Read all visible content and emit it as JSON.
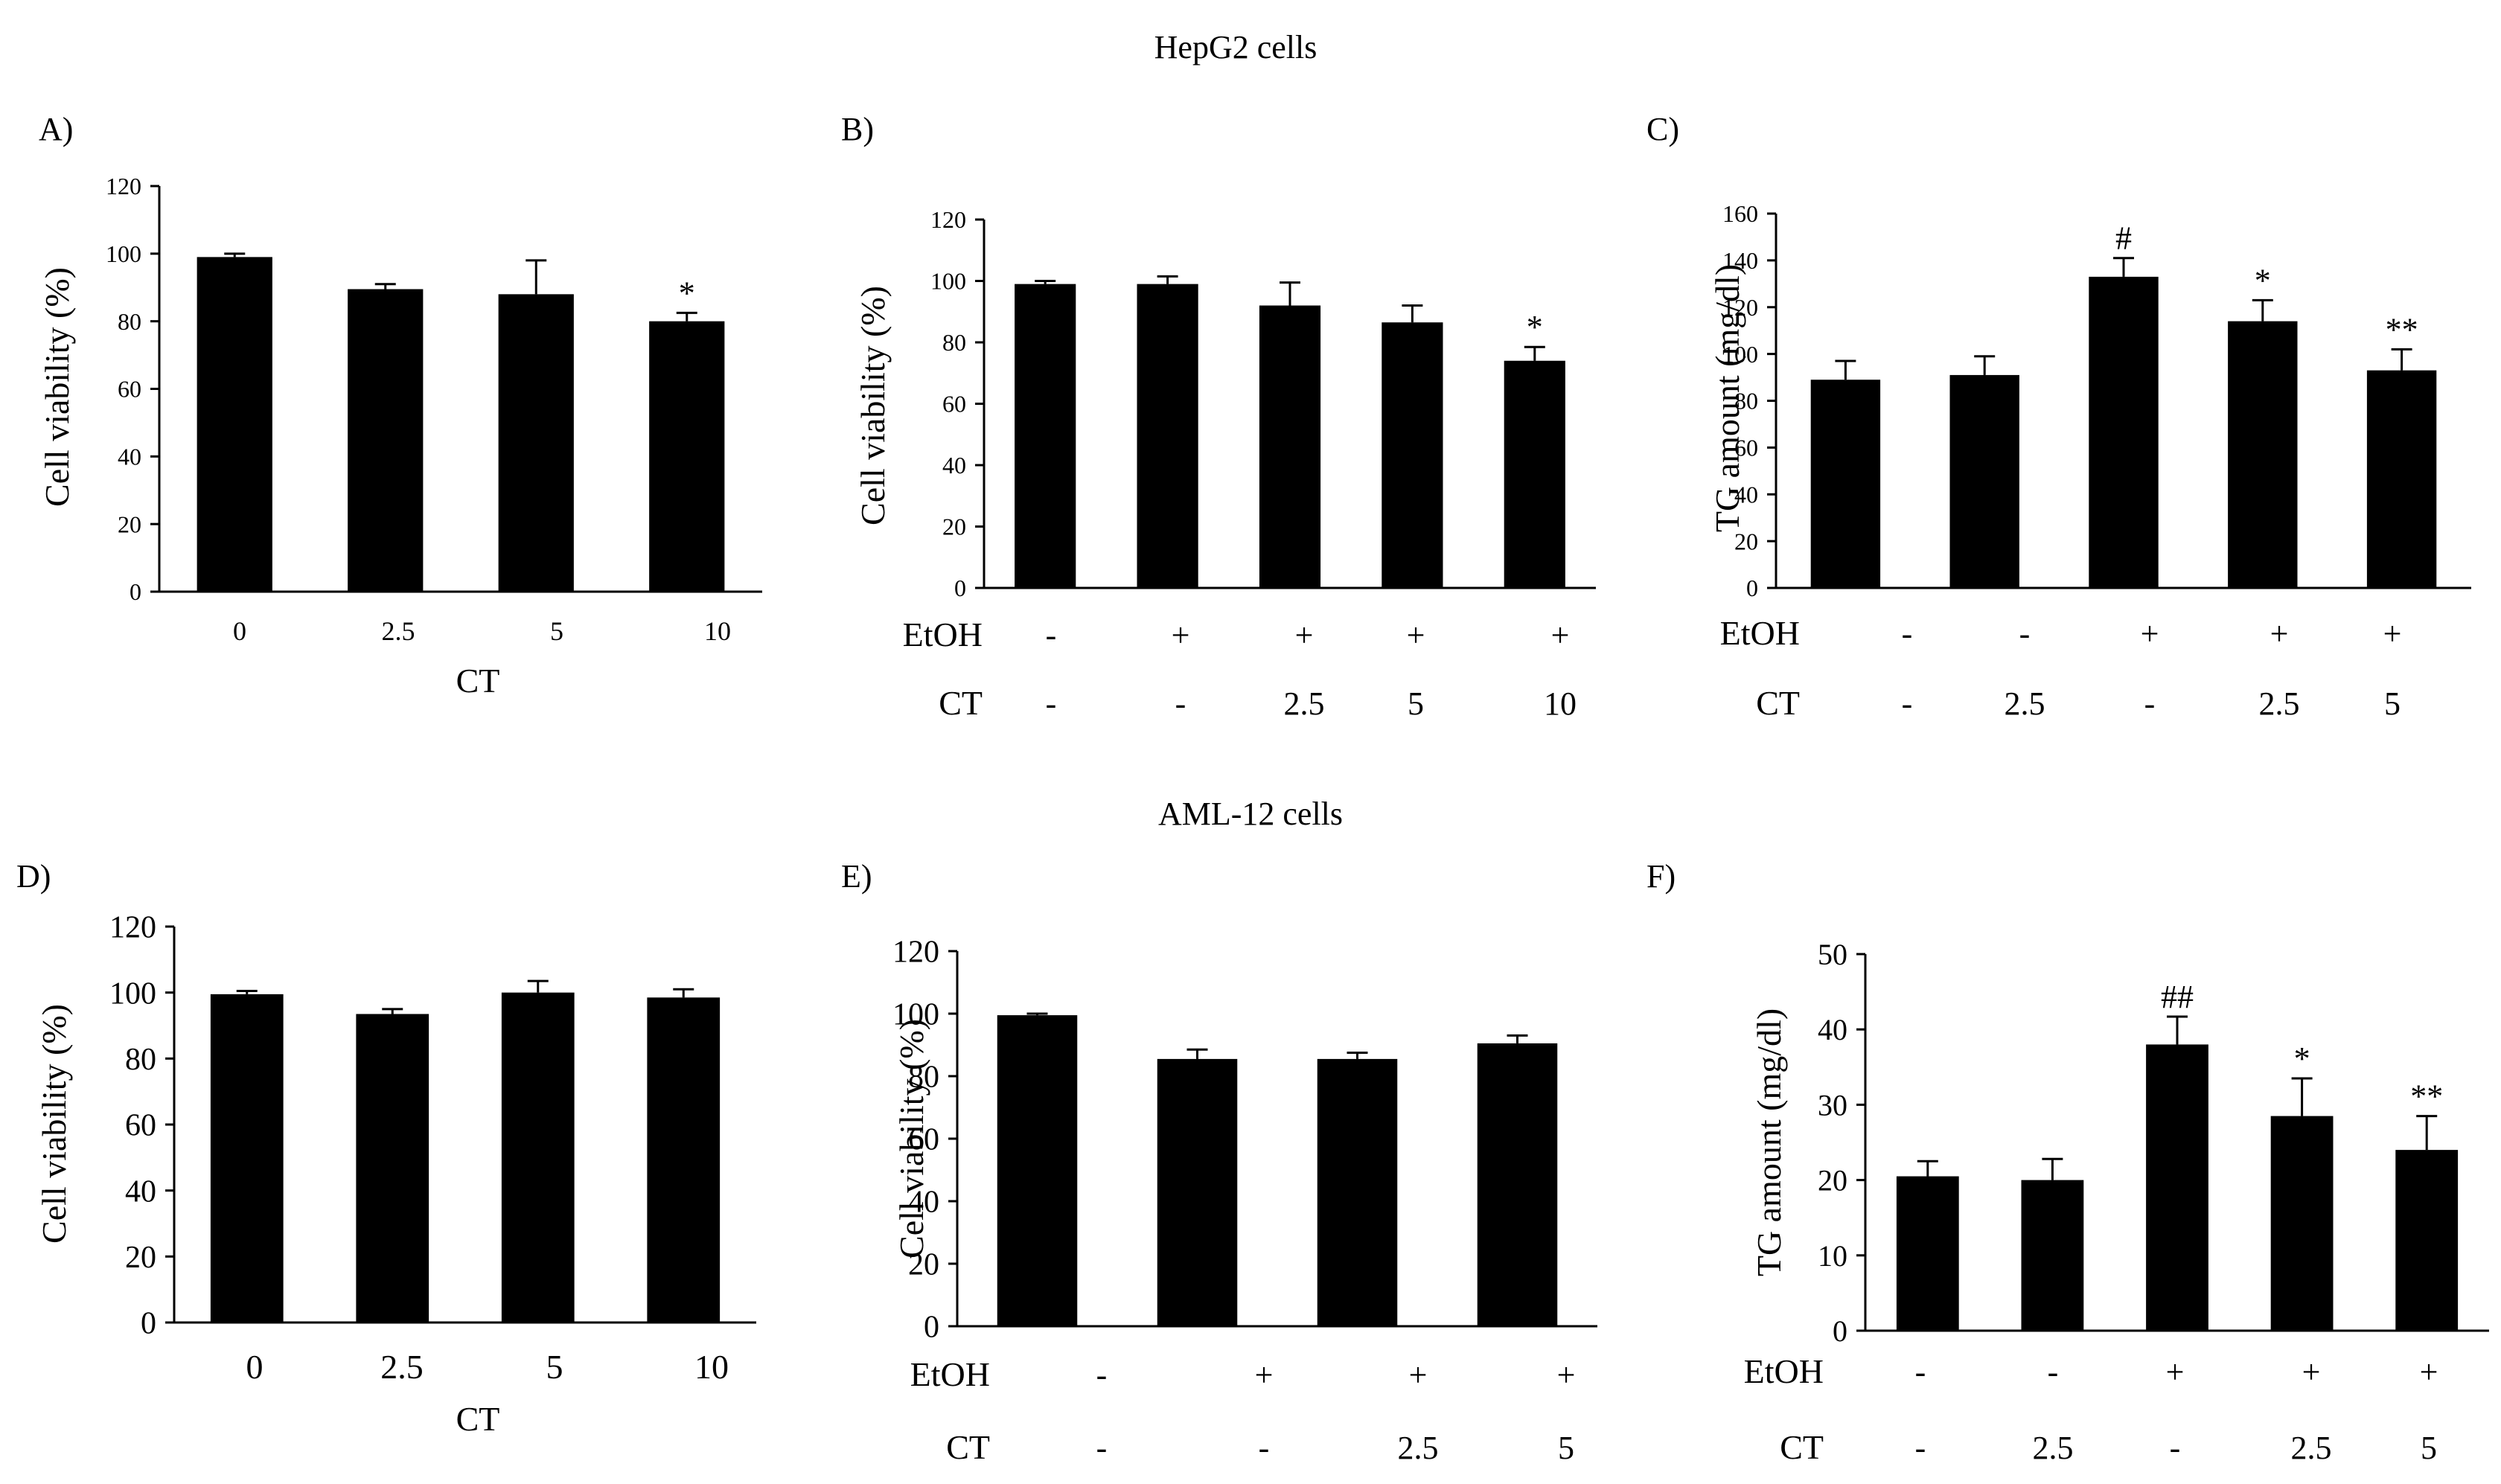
{
  "section_titles": [
    "HepG2 cells",
    "AML-12 cells"
  ],
  "chart_data": [
    {
      "panel": "A)",
      "type": "bar",
      "ylabel": "Cell viability  (%)",
      "xlabel": "CT",
      "ylim": [
        0,
        120
      ],
      "yticks": [
        0,
        20,
        40,
        60,
        80,
        100,
        120
      ],
      "categories": [
        "0",
        "2.5",
        "5",
        "10"
      ],
      "values": [
        99,
        89.5,
        88,
        80
      ],
      "errors": [
        1,
        1.5,
        10,
        2.5
      ],
      "annotations": [
        "",
        "",
        "",
        "*"
      ]
    },
    {
      "panel": "B)",
      "type": "bar",
      "ylabel": "Cell viability  (%)",
      "ylim": [
        0,
        120
      ],
      "yticks": [
        0,
        20,
        40,
        60,
        80,
        100,
        120
      ],
      "rows": [
        {
          "label": "EtOH",
          "values": [
            "-",
            "+",
            "+",
            "+",
            "+"
          ]
        },
        {
          "label": "CT",
          "values": [
            "-",
            "-",
            "2.5",
            "5",
            "10"
          ]
        }
      ],
      "values": [
        99,
        99,
        92,
        86.5,
        74
      ],
      "errors": [
        1,
        2.5,
        7.5,
        5.5,
        4.5
      ],
      "annotations": [
        "",
        "",
        "",
        "",
        "*"
      ]
    },
    {
      "panel": "C)",
      "type": "bar",
      "ylabel": "TG amount  (mg/dl)",
      "ylim": [
        0,
        160
      ],
      "yticks": [
        0,
        20,
        40,
        60,
        80,
        100,
        120,
        140,
        160
      ],
      "rows": [
        {
          "label": "EtOH",
          "values": [
            "-",
            "-",
            "+",
            "+",
            "+"
          ]
        },
        {
          "label": "CT",
          "values": [
            "-",
            "2.5",
            "-",
            "2.5",
            "5"
          ]
        }
      ],
      "values": [
        89,
        91,
        133,
        114,
        93
      ],
      "errors": [
        8,
        8,
        8,
        9,
        9
      ],
      "annotations": [
        "",
        "",
        "#",
        "*",
        "**"
      ]
    },
    {
      "panel": "D)",
      "type": "bar",
      "ylabel": "Cell viability  (%)",
      "xlabel": "CT",
      "ylim": [
        0,
        120
      ],
      "yticks": [
        0,
        20,
        40,
        60,
        80,
        100,
        120
      ],
      "categories": [
        "0",
        "2.5",
        "5",
        "10"
      ],
      "values": [
        99.5,
        93.5,
        100,
        98.5
      ],
      "errors": [
        1,
        1.5,
        3.5,
        2.5
      ],
      "annotations": [
        "",
        "",
        "",
        ""
      ]
    },
    {
      "panel": "E)",
      "type": "bar",
      "ylabel": "Cell viability  (%)",
      "ylim": [
        0,
        120
      ],
      "yticks": [
        0,
        20,
        40,
        60,
        80,
        100,
        120
      ],
      "rows": [
        {
          "label": "EtOH",
          "values": [
            "-",
            "+",
            "+",
            "+"
          ]
        },
        {
          "label": "CT",
          "values": [
            "-",
            "-",
            "2.5",
            "5"
          ]
        }
      ],
      "values": [
        99.5,
        85.5,
        85.5,
        90.5
      ],
      "errors": [
        0.5,
        3,
        2,
        2.5
      ],
      "annotations": [
        "",
        "",
        "",
        ""
      ]
    },
    {
      "panel": "F)",
      "type": "bar",
      "ylabel": "TG amount  (mg/dl)",
      "ylim": [
        0,
        50
      ],
      "yticks": [
        0,
        10,
        20,
        30,
        40,
        50
      ],
      "rows": [
        {
          "label": "EtOH",
          "values": [
            "-",
            "-",
            "+",
            "+",
            "+"
          ]
        },
        {
          "label": "CT",
          "values": [
            "-",
            "2.5",
            "-",
            "2.5",
            "5"
          ]
        }
      ],
      "values": [
        20.5,
        20,
        38,
        28.5,
        24
      ],
      "errors": [
        2,
        2.8,
        3.7,
        5,
        4.5
      ],
      "annotations": [
        "",
        "",
        "##",
        "*",
        "**"
      ]
    }
  ]
}
